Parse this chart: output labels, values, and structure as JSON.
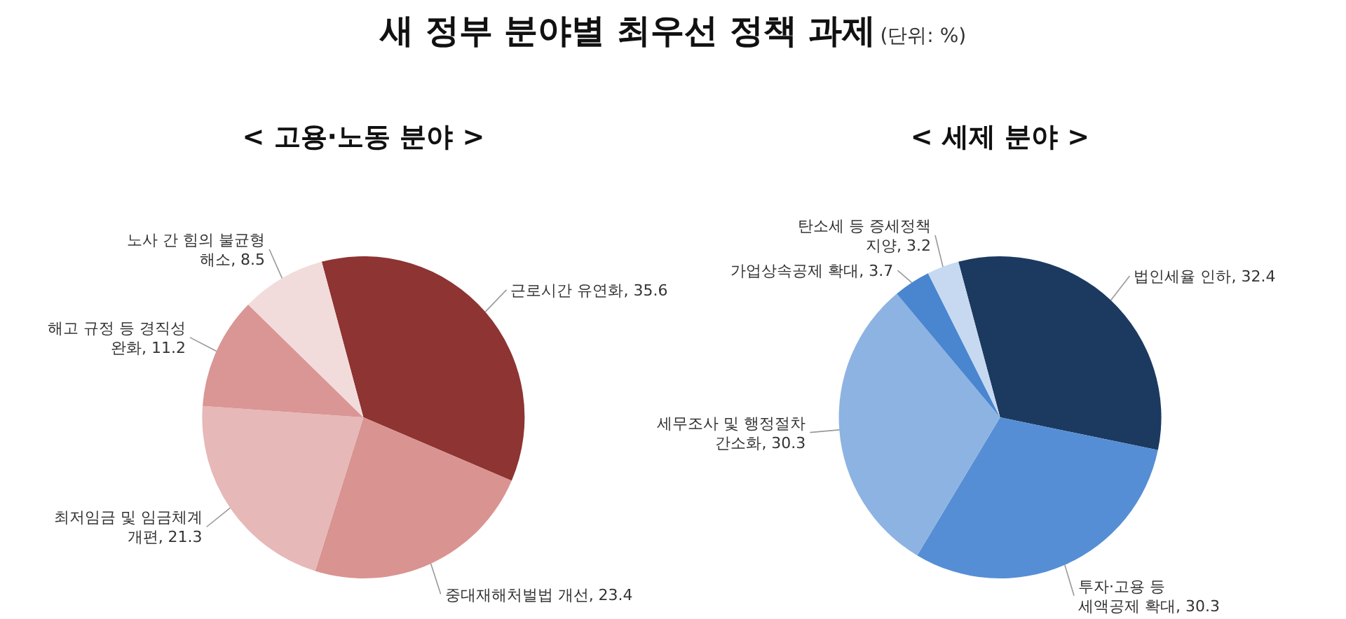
{
  "chart_data": [
    {
      "type": "pie",
      "title": "< 고용·노동 분야 >",
      "annotations": [
        "새 정부 분야별 최우선 정책 과제",
        "(단위: %)"
      ],
      "value_labels": [
        ", 35.6",
        ", 23.4",
        ", 21.3",
        ", 11.2",
        ", 8.5"
      ],
      "categories": [
        "근로시간 유연화",
        "중대재해처벌법 개선",
        "최저임금 및 임금체계 개편",
        "해고 규정 등 경직성 완화",
        "노사 간 힘의 불균형 해소"
      ],
      "values": [
        35.6,
        23.4,
        21.3,
        11.2,
        8.5
      ],
      "colors": [
        "#8e3432",
        "#d99391",
        "#e6b8b7",
        "#da9694",
        "#f2dcdb"
      ]
    },
    {
      "type": "pie",
      "title": "< 세제 분야 >",
      "value_labels": [
        ", 32.4",
        ", 30.3",
        ", 30.3",
        ", 3.7",
        ", 3.2"
      ],
      "categories": [
        "법인세율 인하",
        "투자·고용 등 세액공제 확대",
        "세무조사 및 행정절차 간소화",
        "가업상속공제 확대",
        "탄소세 등 증세정책 지양"
      ],
      "values": [
        32.4,
        30.3,
        30.3,
        3.7,
        3.2
      ],
      "colors": [
        "#1c3a60",
        "#558ed5",
        "#8db3e2",
        "#4a86d0",
        "#c6d9f1"
      ]
    }
  ]
}
